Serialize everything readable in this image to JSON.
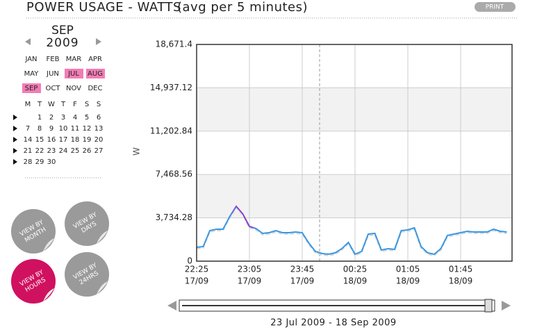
{
  "header": {
    "title": "POWER USAGE - WATTS",
    "subtitle": "(avg per 5 minutes)",
    "print_button": "PRINT"
  },
  "calendar": {
    "month": "SEP",
    "year": "2009",
    "months": [
      {
        "label": "JAN",
        "selected": false
      },
      {
        "label": "FEB",
        "selected": false
      },
      {
        "label": "MAR",
        "selected": false
      },
      {
        "label": "APR",
        "selected": false
      },
      {
        "label": "MAY",
        "selected": false
      },
      {
        "label": "JUN",
        "selected": false
      },
      {
        "label": "JUL",
        "selected": true
      },
      {
        "label": "AUG",
        "selected": true
      },
      {
        "label": "SEP",
        "selected": true
      },
      {
        "label": "OCT",
        "selected": false
      },
      {
        "label": "NOV",
        "selected": false
      },
      {
        "label": "DEC",
        "selected": false
      }
    ],
    "weekdays": [
      "M",
      "T",
      "W",
      "T",
      "F",
      "S",
      "S"
    ],
    "weeks": [
      [
        null,
        1,
        2,
        3,
        4,
        5,
        6
      ],
      [
        7,
        8,
        9,
        10,
        11,
        12,
        13
      ],
      [
        14,
        15,
        16,
        17,
        18,
        19,
        20
      ],
      [
        21,
        22,
        23,
        24,
        25,
        26,
        27
      ],
      [
        28,
        29,
        30,
        null,
        null,
        null,
        null
      ]
    ]
  },
  "buttons": [
    {
      "lines": [
        "VIEW BY",
        "MONTH"
      ],
      "active": false
    },
    {
      "lines": [
        "VIEW BY",
        "DAYS"
      ],
      "active": false
    },
    {
      "lines": [
        "VIEW BY",
        "HOURS"
      ],
      "active": true
    },
    {
      "lines": [
        "VIEW BY",
        "24HRS"
      ],
      "active": false
    }
  ],
  "chart_data": {
    "type": "line",
    "y_label": "W",
    "categories": [
      [
        "22:25",
        "17/09"
      ],
      null,
      null,
      null,
      null,
      null,
      null,
      null,
      [
        "23:05",
        "17/09"
      ],
      null,
      null,
      null,
      null,
      null,
      null,
      null,
      [
        "23:45",
        "17/09"
      ],
      null,
      null,
      null,
      null,
      null,
      null,
      null,
      [
        "00:25",
        "18/09"
      ],
      null,
      null,
      null,
      null,
      null,
      null,
      null,
      [
        "01:05",
        "18/09"
      ],
      null,
      null,
      null,
      null,
      null,
      null,
      null,
      [
        "01:45",
        "18/09"
      ],
      null,
      null,
      null,
      null,
      null,
      null,
      null
    ],
    "series": [
      {
        "color": "#3a96e0",
        "highlight_color": "#8a3fd0",
        "values": [
          1197,
          1257,
          2633,
          2753,
          2753,
          3830,
          4727,
          4069,
          2992,
          2812,
          2394,
          2453,
          2633,
          2453,
          2453,
          2513,
          2453,
          1556,
          838,
          658,
          598,
          718,
          1077,
          1616,
          598,
          838,
          2334,
          2394,
          957,
          1077,
          1017,
          2633,
          2693,
          2872,
          1257,
          718,
          598,
          1077,
          2214,
          2334,
          2453,
          2573,
          2513,
          2513,
          2513,
          2753,
          2573,
          2513
        ]
      }
    ],
    "ylim": [
      0,
      18671.4
    ],
    "yticks": [
      0,
      {
        "value": 3734.28,
        "label": "3,734.28"
      },
      {
        "value": 7468.56,
        "label": "7,468.56"
      },
      {
        "value": 11202.84,
        "label": "11,202.84"
      },
      {
        "value": 14937.12,
        "label": "14,937.12"
      },
      {
        "value": 18671.4,
        "label": "18,671.4"
      }
    ],
    "grid": true
  },
  "range_label": "23 Jul 2009 - 18 Sep 2009"
}
